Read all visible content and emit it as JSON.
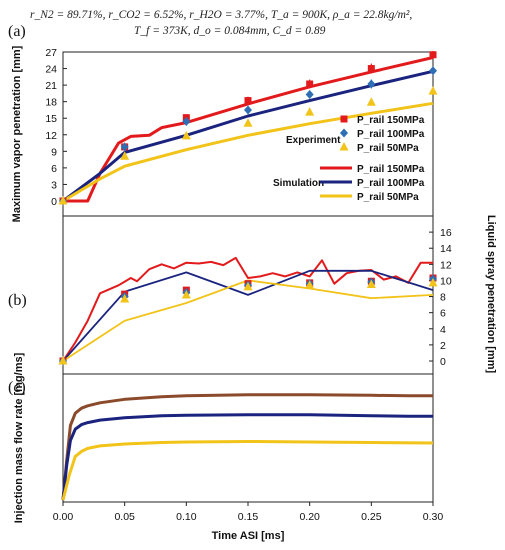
{
  "conditions": {
    "line1": "r_N2 = 89.71%, r_CO2 = 6.52%, r_H2O = 3.77%, T_a = 900K, ρ_a = 22.8kg/m²,",
    "line2": "T_f = 373K, d_o = 0.084mm, C_d = 0.89"
  },
  "colors": {
    "p150": "#e31a1c",
    "p100": "#1a237e",
    "p50": "#f2c318",
    "exp100": "#2f6db5",
    "brown": "#8b4a2b"
  },
  "chart_data": [
    {
      "panel": "(a)",
      "type": "line",
      "ylabel": "Maximum vapor penetration [mm]",
      "ylim": [
        0,
        27
      ],
      "yticks": [
        0,
        3,
        6,
        9,
        12,
        15,
        18,
        21,
        24,
        27
      ],
      "xlim": [
        0,
        0.3
      ],
      "legend": {
        "experiment_title": "Experiment",
        "simulation_title": "Simulation",
        "entries": [
          "P_rail 150MPa",
          "P_rail 100MPa",
          "P_rail 50MPa"
        ]
      },
      "experiment": [
        {
          "name": "P_rail 150MPa",
          "marker": "square",
          "x": [
            0,
            0.05,
            0.1,
            0.15,
            0.2,
            0.25,
            0.3
          ],
          "y": [
            0,
            9.8,
            15.1,
            18.2,
            21.2,
            24.0,
            26.5
          ],
          "err": [
            0,
            0.3,
            0.6,
            0.7,
            0.8,
            0.9,
            0.7
          ]
        },
        {
          "name": "P_rail 100MPa",
          "marker": "diamond",
          "x": [
            0,
            0.05,
            0.1,
            0.15,
            0.2,
            0.25,
            0.3
          ],
          "y": [
            0,
            9.8,
            14.4,
            16.5,
            19.3,
            21.2,
            23.6
          ],
          "err": [
            0,
            0.3,
            0.5,
            0.6,
            0.7,
            0.8,
            0.7
          ]
        },
        {
          "name": "P_rail 50MPa",
          "marker": "triangle",
          "x": [
            0,
            0.05,
            0.1,
            0.15,
            0.2,
            0.25,
            0.3
          ],
          "y": [
            0,
            8.1,
            11.8,
            14.1,
            16.1,
            17.9,
            19.9
          ],
          "err": [
            0,
            0.3,
            0.4,
            0.5,
            0.5,
            0.6,
            0.5
          ]
        }
      ],
      "simulation": [
        {
          "name": "P_rail 150MPa",
          "x": [
            0,
            0.02,
            0.03,
            0.045,
            0.055,
            0.07,
            0.08,
            0.1,
            0.15,
            0.2,
            0.25,
            0.3
          ],
          "y": [
            0,
            0,
            5,
            10.5,
            11.7,
            11.9,
            13.3,
            14.2,
            17.6,
            20.7,
            23.4,
            26.0
          ]
        },
        {
          "name": "P_rail 100MPa",
          "x": [
            0,
            0.03,
            0.05,
            0.1,
            0.15,
            0.2,
            0.25,
            0.3
          ],
          "y": [
            0,
            5,
            8.8,
            11.9,
            15.4,
            18.2,
            20.9,
            23.5
          ]
        },
        {
          "name": "P_rail 50MPa",
          "x": [
            0,
            0.03,
            0.05,
            0.1,
            0.15,
            0.2,
            0.25,
            0.3
          ],
          "y": [
            0,
            4,
            6.3,
            9.3,
            11.9,
            14.0,
            15.9,
            17.7
          ]
        }
      ]
    },
    {
      "panel": "(b)",
      "type": "line",
      "ylabel": "Liquid spray penetration [mm]",
      "ylim": [
        0,
        18
      ],
      "yticks": [
        0,
        2,
        4,
        6,
        8,
        10,
        12,
        14,
        16
      ],
      "xlim": [
        0,
        0.3
      ],
      "experiment": [
        {
          "name": "P_rail 150MPa",
          "marker": "square",
          "x": [
            0,
            0.05,
            0.1,
            0.15,
            0.2,
            0.25,
            0.3
          ],
          "y": [
            0,
            8.3,
            8.8,
            9.6,
            9.7,
            9.9,
            10.3
          ]
        },
        {
          "name": "P_rail 100MPa",
          "marker": "diamond",
          "x": [
            0,
            0.05,
            0.1,
            0.15,
            0.2,
            0.25,
            0.3
          ],
          "y": [
            0,
            8.0,
            8.5,
            9.4,
            9.6,
            9.8,
            10.2
          ]
        },
        {
          "name": "P_rail 50MPa",
          "marker": "triangle",
          "x": [
            0,
            0.05,
            0.1,
            0.15,
            0.2,
            0.25,
            0.3
          ],
          "y": [
            0,
            7.7,
            8.2,
            9.2,
            9.4,
            9.5,
            9.7
          ]
        }
      ],
      "simulation": [
        {
          "name": "P_rail 150MPa",
          "x": [
            0,
            0.01,
            0.02,
            0.03,
            0.045,
            0.055,
            0.06,
            0.07,
            0.08,
            0.09,
            0.1,
            0.11,
            0.12,
            0.13,
            0.14,
            0.15,
            0.16,
            0.17,
            0.18,
            0.19,
            0.2,
            0.21,
            0.22,
            0.23,
            0.24,
            0.25,
            0.26,
            0.27,
            0.28,
            0.29,
            0.3
          ],
          "y": [
            0,
            2.3,
            5,
            8.4,
            9.4,
            10.3,
            9.9,
            11.4,
            12.0,
            11.5,
            12.2,
            12.1,
            12.3,
            11.9,
            12.8,
            10.3,
            10.5,
            10.9,
            10.5,
            11.0,
            10.5,
            12.5,
            9.6,
            10.9,
            11.2,
            11.3,
            10.1,
            10.5,
            9.7,
            12.2,
            12.2
          ]
        },
        {
          "name": "P_rail 100MPa",
          "x": [
            0,
            0.05,
            0.1,
            0.15,
            0.2,
            0.25,
            0.3
          ],
          "y": [
            0,
            8.6,
            11.0,
            8.2,
            11.2,
            11.2,
            8.8
          ]
        },
        {
          "name": "P_rail 50MPa",
          "x": [
            0,
            0.05,
            0.1,
            0.15,
            0.2,
            0.25,
            0.3
          ],
          "y": [
            0,
            5.0,
            7.2,
            10.0,
            9.0,
            7.8,
            8.2
          ]
        }
      ]
    },
    {
      "panel": "(c)",
      "type": "line",
      "ylabel": "Injection mass flow rate [mg/ms]",
      "xlabel": "Time ASI [ms]",
      "xlim": [
        0,
        0.3
      ],
      "xticks": [
        "0.00",
        "0.05",
        "0.10",
        "0.15",
        "0.20",
        "0.25",
        "0.30"
      ],
      "ylim": [
        0,
        25
      ],
      "series": [
        {
          "name": "P_rail 150MPa",
          "x": [
            0,
            0.003,
            0.006,
            0.01,
            0.015,
            0.02,
            0.03,
            0.05,
            0.08,
            0.1,
            0.15,
            0.2,
            0.25,
            0.28,
            0.3
          ],
          "y": [
            0,
            8,
            15,
            17.5,
            18.5,
            19.0,
            19.6,
            20.3,
            20.8,
            21.0,
            21.2,
            21.2,
            21.1,
            21.0,
            21.0
          ]
        },
        {
          "name": "P_rail 100MPa",
          "x": [
            0,
            0.003,
            0.006,
            0.01,
            0.015,
            0.02,
            0.03,
            0.05,
            0.08,
            0.1,
            0.15,
            0.2,
            0.25,
            0.28,
            0.3
          ],
          "y": [
            0,
            7,
            12,
            14.3,
            15.2,
            15.6,
            16.1,
            16.6,
            17.0,
            17.1,
            17.2,
            17.2,
            17.0,
            16.9,
            16.9
          ]
        },
        {
          "name": "P_rail 50MPa",
          "x": [
            0,
            0.005,
            0.01,
            0.015,
            0.02,
            0.03,
            0.05,
            0.08,
            0.1,
            0.15,
            0.2,
            0.25,
            0.3
          ],
          "y": [
            0,
            5,
            8.8,
            9.8,
            10.4,
            10.9,
            11.3,
            11.6,
            11.7,
            11.8,
            11.7,
            11.6,
            11.5
          ]
        }
      ]
    }
  ]
}
